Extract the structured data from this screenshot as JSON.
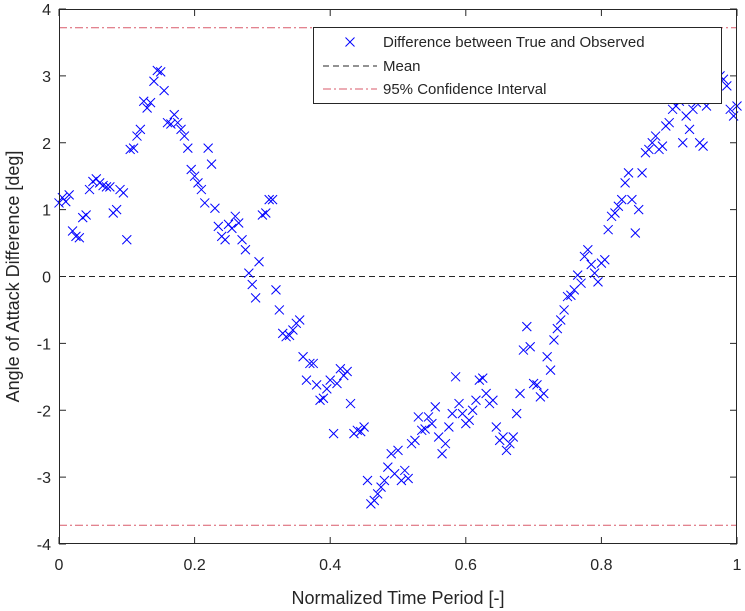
{
  "chart_data": {
    "type": "scatter",
    "title": "",
    "xlabel": "Normalized Time Period [-]",
    "ylabel": "Angle of Attack Difference [deg]",
    "xlim": [
      0,
      1
    ],
    "ylim": [
      -4,
      4
    ],
    "xticks": [
      0,
      0.2,
      0.4,
      0.6,
      0.8,
      1
    ],
    "xtick_labels": [
      "0",
      "0.2",
      "0.4",
      "0.6",
      "0.8",
      "1"
    ],
    "yticks": [
      -4,
      -3,
      -2,
      -1,
      0,
      1,
      2,
      3,
      4
    ],
    "ytick_labels": [
      "-4",
      "-3",
      "-2",
      "-1",
      "0",
      "1",
      "2",
      "3",
      "4"
    ],
    "grid": false,
    "legend_position": "top-right",
    "legend": [
      {
        "label": "Difference between True and Observed",
        "marker": "x",
        "color": "#0000ff"
      },
      {
        "label": "Mean",
        "line": "dashed",
        "color": "#262626"
      },
      {
        "label": "95% Confidence Interval",
        "line": "dash-dot",
        "color": "#d95a6a"
      }
    ],
    "mean": 0,
    "confidence_interval": [
      -3.72,
      3.72
    ],
    "series": [
      {
        "marker": "x",
        "color": "#0000ff",
        "points": [
          [
            0.0,
            1.1
          ],
          [
            0.005,
            1.18
          ],
          [
            0.01,
            1.12
          ],
          [
            0.015,
            1.22
          ],
          [
            0.02,
            0.68
          ],
          [
            0.025,
            0.6
          ],
          [
            0.03,
            0.58
          ],
          [
            0.035,
            0.88
          ],
          [
            0.04,
            0.92
          ],
          [
            0.045,
            1.3
          ],
          [
            0.05,
            1.42
          ],
          [
            0.055,
            1.46
          ],
          [
            0.06,
            1.4
          ],
          [
            0.065,
            1.36
          ],
          [
            0.07,
            1.34
          ],
          [
            0.075,
            1.34
          ],
          [
            0.08,
            0.95
          ],
          [
            0.085,
            1.0
          ],
          [
            0.09,
            1.3
          ],
          [
            0.095,
            1.25
          ],
          [
            0.1,
            0.55
          ],
          [
            0.105,
            1.9
          ],
          [
            0.11,
            1.92
          ],
          [
            0.115,
            2.1
          ],
          [
            0.12,
            2.2
          ],
          [
            0.125,
            2.62
          ],
          [
            0.13,
            2.52
          ],
          [
            0.135,
            2.6
          ],
          [
            0.14,
            2.92
          ],
          [
            0.145,
            3.08
          ],
          [
            0.15,
            3.06
          ],
          [
            0.155,
            2.78
          ],
          [
            0.16,
            2.3
          ],
          [
            0.165,
            2.28
          ],
          [
            0.17,
            2.42
          ],
          [
            0.175,
            2.3
          ],
          [
            0.18,
            2.2
          ],
          [
            0.185,
            2.1
          ],
          [
            0.19,
            1.92
          ],
          [
            0.195,
            1.6
          ],
          [
            0.2,
            1.5
          ],
          [
            0.205,
            1.4
          ],
          [
            0.21,
            1.3
          ],
          [
            0.215,
            1.1
          ],
          [
            0.22,
            1.92
          ],
          [
            0.225,
            1.68
          ],
          [
            0.23,
            1.02
          ],
          [
            0.235,
            0.75
          ],
          [
            0.24,
            0.6
          ],
          [
            0.245,
            0.55
          ],
          [
            0.25,
            0.78
          ],
          [
            0.255,
            0.72
          ],
          [
            0.26,
            0.9
          ],
          [
            0.265,
            0.8
          ],
          [
            0.27,
            0.55
          ],
          [
            0.275,
            0.4
          ],
          [
            0.28,
            0.05
          ],
          [
            0.285,
            -0.12
          ],
          [
            0.29,
            -0.32
          ],
          [
            0.295,
            0.22
          ],
          [
            0.3,
            0.92
          ],
          [
            0.305,
            0.95
          ],
          [
            0.31,
            1.15
          ],
          [
            0.315,
            1.15
          ],
          [
            0.32,
            -0.2
          ],
          [
            0.325,
            -0.5
          ],
          [
            0.33,
            -0.85
          ],
          [
            0.335,
            -0.9
          ],
          [
            0.34,
            -0.88
          ],
          [
            0.345,
            -0.8
          ],
          [
            0.35,
            -0.7
          ],
          [
            0.355,
            -0.65
          ],
          [
            0.36,
            -1.2
          ],
          [
            0.365,
            -1.55
          ],
          [
            0.37,
            -1.3
          ],
          [
            0.375,
            -1.3
          ],
          [
            0.38,
            -1.62
          ],
          [
            0.385,
            -1.85
          ],
          [
            0.39,
            -1.82
          ],
          [
            0.395,
            -1.68
          ],
          [
            0.4,
            -1.55
          ],
          [
            0.405,
            -2.35
          ],
          [
            0.41,
            -1.6
          ],
          [
            0.415,
            -1.38
          ],
          [
            0.42,
            -1.48
          ],
          [
            0.425,
            -1.42
          ],
          [
            0.43,
            -1.9
          ],
          [
            0.435,
            -2.35
          ],
          [
            0.44,
            -2.3
          ],
          [
            0.445,
            -2.32
          ],
          [
            0.45,
            -2.25
          ],
          [
            0.455,
            -3.05
          ],
          [
            0.46,
            -3.4
          ],
          [
            0.465,
            -3.35
          ],
          [
            0.47,
            -3.25
          ],
          [
            0.475,
            -3.15
          ],
          [
            0.48,
            -3.05
          ],
          [
            0.485,
            -2.85
          ],
          [
            0.49,
            -2.65
          ],
          [
            0.495,
            -2.95
          ],
          [
            0.5,
            -2.6
          ],
          [
            0.505,
            -3.05
          ],
          [
            0.51,
            -2.9
          ],
          [
            0.515,
            -3.02
          ],
          [
            0.52,
            -2.5
          ],
          [
            0.525,
            -2.45
          ],
          [
            0.53,
            -2.1
          ],
          [
            0.535,
            -2.3
          ],
          [
            0.54,
            -2.28
          ],
          [
            0.545,
            -2.1
          ],
          [
            0.55,
            -2.2
          ],
          [
            0.555,
            -1.95
          ],
          [
            0.56,
            -2.4
          ],
          [
            0.565,
            -2.65
          ],
          [
            0.57,
            -2.5
          ],
          [
            0.575,
            -2.25
          ],
          [
            0.58,
            -2.05
          ],
          [
            0.585,
            -1.5
          ],
          [
            0.59,
            -1.9
          ],
          [
            0.595,
            -2.05
          ],
          [
            0.6,
            -2.2
          ],
          [
            0.605,
            -2.15
          ],
          [
            0.61,
            -2.0
          ],
          [
            0.615,
            -1.85
          ],
          [
            0.62,
            -1.55
          ],
          [
            0.625,
            -1.52
          ],
          [
            0.63,
            -1.75
          ],
          [
            0.635,
            -1.9
          ],
          [
            0.64,
            -1.85
          ],
          [
            0.645,
            -2.25
          ],
          [
            0.65,
            -2.45
          ],
          [
            0.655,
            -2.4
          ],
          [
            0.66,
            -2.6
          ],
          [
            0.665,
            -2.5
          ],
          [
            0.67,
            -2.4
          ],
          [
            0.675,
            -2.05
          ],
          [
            0.68,
            -1.75
          ],
          [
            0.685,
            -1.1
          ],
          [
            0.69,
            -0.75
          ],
          [
            0.695,
            -1.05
          ],
          [
            0.7,
            -1.6
          ],
          [
            0.705,
            -1.62
          ],
          [
            0.71,
            -1.8
          ],
          [
            0.715,
            -1.75
          ],
          [
            0.72,
            -1.2
          ],
          [
            0.725,
            -1.4
          ],
          [
            0.73,
            -0.95
          ],
          [
            0.735,
            -0.78
          ],
          [
            0.74,
            -0.65
          ],
          [
            0.745,
            -0.5
          ],
          [
            0.75,
            -0.3
          ],
          [
            0.755,
            -0.28
          ],
          [
            0.76,
            -0.2
          ],
          [
            0.765,
            0.02
          ],
          [
            0.77,
            -0.1
          ],
          [
            0.775,
            0.3
          ],
          [
            0.78,
            0.4
          ],
          [
            0.785,
            0.18
          ],
          [
            0.79,
            0.05
          ],
          [
            0.795,
            -0.08
          ],
          [
            0.8,
            0.2
          ],
          [
            0.805,
            0.25
          ],
          [
            0.81,
            0.7
          ],
          [
            0.815,
            0.9
          ],
          [
            0.82,
            0.95
          ],
          [
            0.825,
            1.05
          ],
          [
            0.83,
            1.15
          ],
          [
            0.835,
            1.4
          ],
          [
            0.84,
            1.55
          ],
          [
            0.845,
            1.15
          ],
          [
            0.85,
            0.65
          ],
          [
            0.855,
            1.0
          ],
          [
            0.86,
            1.55
          ],
          [
            0.865,
            1.85
          ],
          [
            0.87,
            1.9
          ],
          [
            0.875,
            2.0
          ],
          [
            0.88,
            2.1
          ],
          [
            0.885,
            1.9
          ],
          [
            0.89,
            1.95
          ],
          [
            0.895,
            2.25
          ],
          [
            0.9,
            2.3
          ],
          [
            0.905,
            2.5
          ],
          [
            0.91,
            2.55
          ],
          [
            0.915,
            2.62
          ],
          [
            0.92,
            2.0
          ],
          [
            0.925,
            2.4
          ],
          [
            0.93,
            2.2
          ],
          [
            0.935,
            2.5
          ],
          [
            0.94,
            2.6
          ],
          [
            0.945,
            2.0
          ],
          [
            0.95,
            1.95
          ],
          [
            0.955,
            2.55
          ],
          [
            0.96,
            2.7
          ],
          [
            0.965,
            3.05
          ],
          [
            0.97,
            2.9
          ],
          [
            0.975,
            3.0
          ],
          [
            0.98,
            2.95
          ],
          [
            0.985,
            2.85
          ],
          [
            0.99,
            2.5
          ],
          [
            0.995,
            2.4
          ],
          [
            1.0,
            2.55
          ]
        ]
      }
    ]
  }
}
